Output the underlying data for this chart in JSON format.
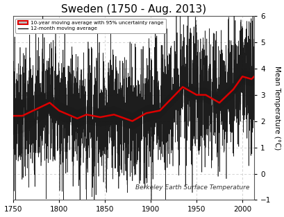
{
  "title": "Sweden (1750 - Aug. 2013)",
  "ylabel": "Mean Temperature (°C)",
  "annotation": "Berkeley Earth Surface Temperature",
  "legend_10yr": "10-year moving average with 95% uncertainty range",
  "legend_12mo": "12-month moving average",
  "xlim": [
    1750,
    2013
  ],
  "ylim": [
    -1,
    6
  ],
  "yticks": [
    -1,
    0,
    1,
    2,
    3,
    4,
    5,
    6
  ],
  "xticks": [
    1750,
    1800,
    1850,
    1900,
    1950,
    2000
  ],
  "bg_color": "#ffffff",
  "grid_color": "#cccccc",
  "shade_color": "#aaaaaa",
  "line_10yr_color": "#dd0000",
  "line_12mo_color": "#111111",
  "title_fontsize": 11,
  "label_fontsize": 7.5,
  "tick_fontsize": 7.5,
  "annotation_fontsize": 6.5
}
